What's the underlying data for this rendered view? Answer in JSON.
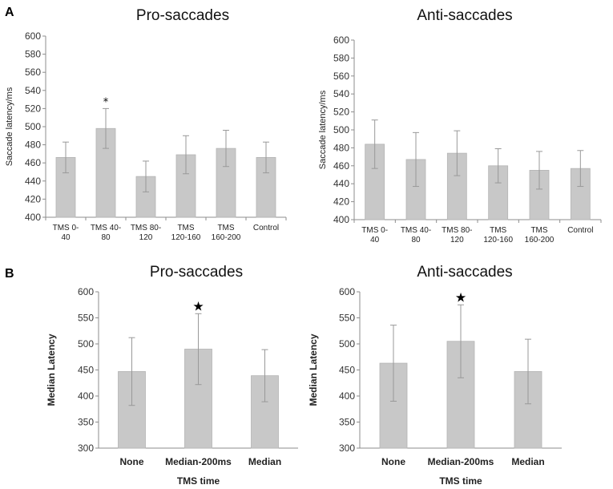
{
  "panels": {
    "a": {
      "letter": "A"
    },
    "b": {
      "letter": "B"
    }
  },
  "colors": {
    "bar_fill": "#c8c8c8",
    "bar_stroke": "#b4b4b4",
    "axis": "#8c8c8c",
    "error": "#999999"
  },
  "chart_data": [
    {
      "id": "a-pro",
      "panel": "A",
      "type": "bar",
      "title": "Pro-saccades",
      "ylabel": "Saccade latency/ms",
      "xlabel": "",
      "ylim": [
        400,
        600
      ],
      "yticks": [
        400,
        420,
        440,
        460,
        480,
        500,
        520,
        540,
        560,
        580,
        600
      ],
      "categories": [
        [
          "TMS 0-",
          "40"
        ],
        [
          "TMS 40-",
          "80"
        ],
        [
          "TMS 80-",
          "120"
        ],
        [
          "TMS",
          "120-160"
        ],
        [
          "TMS",
          "160-200"
        ],
        [
          "Control"
        ]
      ],
      "values": [
        466,
        498,
        445,
        469,
        476,
        466
      ],
      "errors": [
        17,
        22,
        17,
        21,
        20,
        17
      ],
      "significant": [
        false,
        true,
        false,
        false,
        false,
        false
      ],
      "significance_marker": "*"
    },
    {
      "id": "a-anti",
      "panel": "A",
      "type": "bar",
      "title": "Anti-saccades",
      "ylabel": "Saccade latency/ms",
      "xlabel": "",
      "ylim": [
        400,
        600
      ],
      "yticks": [
        400,
        420,
        440,
        460,
        480,
        500,
        520,
        540,
        560,
        580,
        600
      ],
      "categories": [
        [
          "TMS 0-",
          "40"
        ],
        [
          "TMS 40-",
          "80"
        ],
        [
          "TMS 80-",
          "120"
        ],
        [
          "TMS",
          "120-160"
        ],
        [
          "TMS",
          "160-200"
        ],
        [
          "Control"
        ]
      ],
      "values": [
        484,
        467,
        474,
        460,
        455,
        457
      ],
      "errors": [
        27,
        30,
        25,
        19,
        21,
        20
      ],
      "significant": [
        false,
        false,
        false,
        false,
        false,
        false
      ],
      "significance_marker": "*"
    },
    {
      "id": "b-pro",
      "panel": "B",
      "type": "bar",
      "title": "Pro-saccades",
      "ylabel": "Median Latency",
      "xlabel": "TMS time",
      "ylim": [
        300,
        600
      ],
      "yticks": [
        300,
        350,
        400,
        450,
        500,
        550,
        600
      ],
      "categories": [
        [
          "None"
        ],
        [
          "Median-200ms"
        ],
        [
          "Median"
        ]
      ],
      "values": [
        447,
        490,
        439
      ],
      "errors": [
        65,
        68,
        50
      ],
      "significant": [
        false,
        true,
        false
      ],
      "significance_marker": "★"
    },
    {
      "id": "b-anti",
      "panel": "B",
      "type": "bar",
      "title": "Anti-saccades",
      "ylabel": "Median Latency",
      "xlabel": "TMS time",
      "ylim": [
        300,
        600
      ],
      "yticks": [
        300,
        350,
        400,
        450,
        500,
        550,
        600
      ],
      "categories": [
        [
          "None"
        ],
        [
          "Median-200ms"
        ],
        [
          "Median"
        ]
      ],
      "values": [
        463,
        505,
        447
      ],
      "errors": [
        73,
        70,
        62
      ],
      "significant": [
        false,
        true,
        false
      ],
      "significance_marker": "★"
    }
  ]
}
